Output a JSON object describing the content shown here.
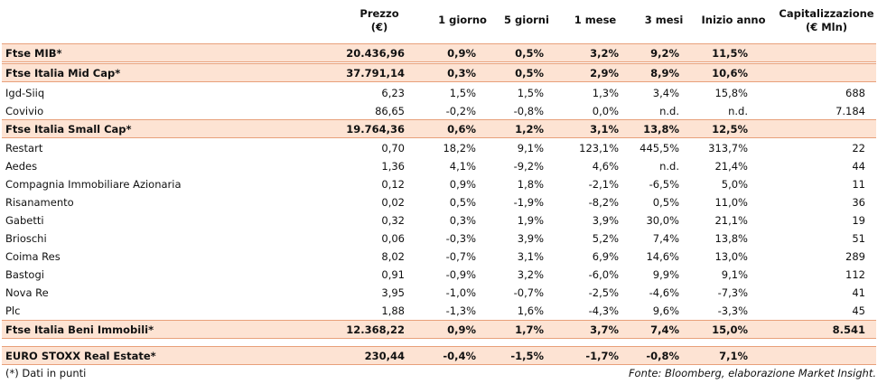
{
  "table": {
    "columns": [
      [
        "Prezzo",
        "(€)"
      ],
      [
        "1 giorno"
      ],
      [
        "5 giorni"
      ],
      [
        "1 mese"
      ],
      [
        "3 mesi"
      ],
      [
        "Inizio anno"
      ],
      [
        "Capitalizzazione",
        "(€ Mln)"
      ]
    ],
    "rows": [
      {
        "bold": true,
        "cells": [
          "Ftse MIB*",
          "20.436,96",
          "0,9%",
          "0,5%",
          "3,2%",
          "9,2%",
          "11,5%",
          null
        ]
      },
      {
        "bold": true,
        "cells": [
          "Ftse Italia Mid Cap*",
          "37.791,14",
          "0,3%",
          "0,5%",
          "2,9%",
          "8,9%",
          "10,6%",
          null
        ]
      },
      {
        "bold": false,
        "cells": [
          "Igd-Siiq",
          "6,23",
          "1,5%",
          "1,5%",
          "1,3%",
          "3,4%",
          "15,8%",
          "688"
        ]
      },
      {
        "bold": false,
        "cells": [
          "Covivio",
          "86,65",
          "-0,2%",
          "-0,8%",
          "0,0%",
          "n.d.",
          "n.d.",
          "7.184"
        ]
      },
      {
        "bold": true,
        "cells": [
          "Ftse Italia Small Cap*",
          "19.764,36",
          "0,6%",
          "1,2%",
          "3,1%",
          "13,8%",
          "12,5%",
          null
        ]
      },
      {
        "bold": false,
        "cells": [
          "Restart",
          "0,70",
          "18,2%",
          "9,1%",
          "123,1%",
          "445,5%",
          "313,7%",
          "22"
        ]
      },
      {
        "bold": false,
        "cells": [
          "Aedes",
          "1,36",
          "4,1%",
          "-9,2%",
          "4,6%",
          "n.d.",
          "21,4%",
          "44"
        ]
      },
      {
        "bold": false,
        "cells": [
          "Compagnia Immobiliare Azionaria",
          "0,12",
          "0,9%",
          "1,8%",
          "-2,1%",
          "-6,5%",
          "5,0%",
          "11"
        ]
      },
      {
        "bold": false,
        "cells": [
          "Risanamento",
          "0,02",
          "0,5%",
          "-1,9%",
          "-8,2%",
          "0,5%",
          "11,0%",
          "36"
        ]
      },
      {
        "bold": false,
        "cells": [
          "Gabetti",
          "0,32",
          "0,3%",
          "1,9%",
          "3,9%",
          "30,0%",
          "21,1%",
          "19"
        ]
      },
      {
        "bold": false,
        "cells": [
          "Brioschi",
          "0,06",
          "-0,3%",
          "3,9%",
          "5,2%",
          "7,4%",
          "13,8%",
          "51"
        ]
      },
      {
        "bold": false,
        "cells": [
          "Coima Res",
          "8,02",
          "-0,7%",
          "3,1%",
          "6,9%",
          "14,6%",
          "13,0%",
          "289"
        ]
      },
      {
        "bold": false,
        "cells": [
          "Bastogi",
          "0,91",
          "-0,9%",
          "3,2%",
          "-6,0%",
          "9,9%",
          "9,1%",
          "112"
        ]
      },
      {
        "bold": false,
        "cells": [
          "Nova Re",
          "3,95",
          "-1,0%",
          "-0,7%",
          "-2,5%",
          "-4,6%",
          "-7,3%",
          "41"
        ]
      },
      {
        "bold": false,
        "cells": [
          "Plc",
          "1,88",
          "-1,3%",
          "1,6%",
          "-4,3%",
          "9,6%",
          "-3,3%",
          "45"
        ]
      },
      {
        "bold": true,
        "cells": [
          "Ftse Italia Beni Immobili*",
          "12.368,22",
          "0,9%",
          "1,7%",
          "3,7%",
          "7,4%",
          "15,0%",
          "8.541"
        ]
      },
      {
        "bold": true,
        "cells": [
          "EURO STOXX Real Estate*",
          "230,44",
          "-0,4%",
          "-1,5%",
          "-1,7%",
          "-0,8%",
          "7,1%",
          null
        ]
      }
    ],
    "footnote": "(*) Dati in punti",
    "source": "Fonte: Bloomberg, elaborazione Market Insight."
  }
}
